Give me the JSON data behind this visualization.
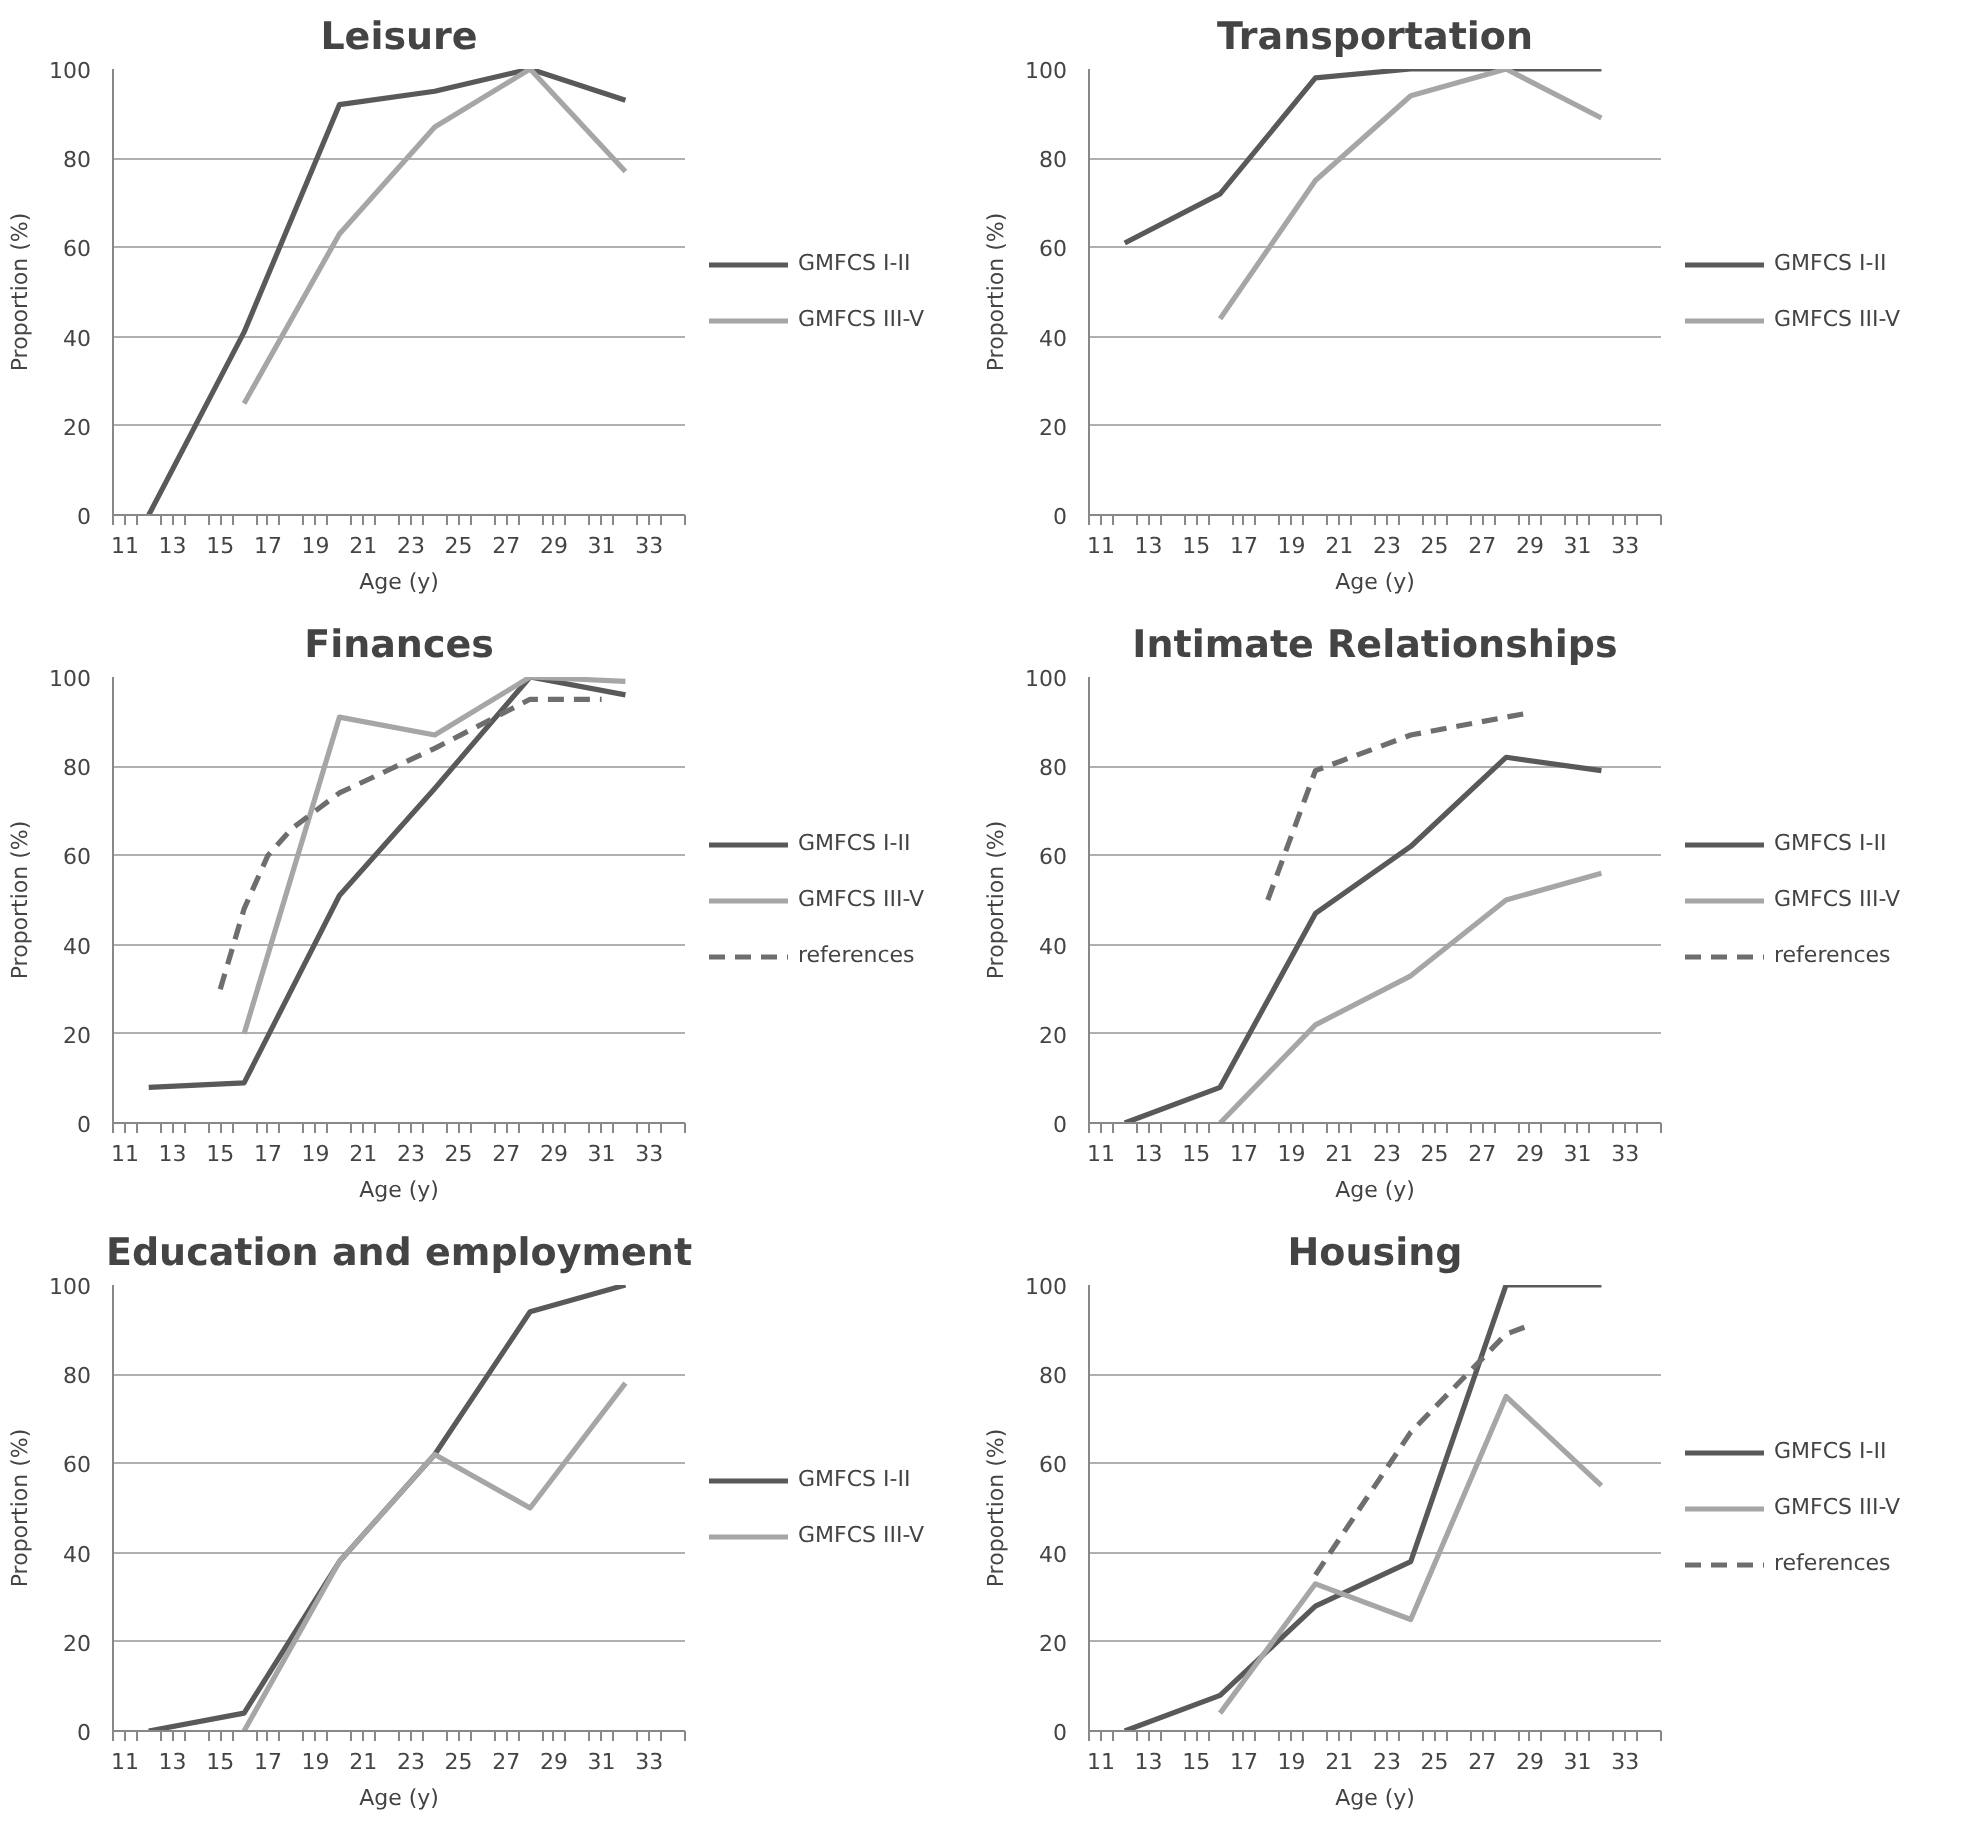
{
  "chart_data": [
    {
      "type": "line",
      "title": "Leisure",
      "xlabel": "Age (y)",
      "ylabel": "Proportion (%)",
      "xlim": [
        10.5,
        34.5
      ],
      "xticks": [
        {
          "value": 10.5,
          "label": null
        },
        11,
        {
          "value": 11.5,
          "label": null
        },
        {
          "value": 12.5,
          "label": null
        },
        13,
        {
          "value": 13.5,
          "label": null
        },
        {
          "value": 14.5,
          "label": null
        },
        15,
        {
          "value": 15.5,
          "label": null
        },
        {
          "value": 16.5,
          "label": null
        },
        17,
        {
          "value": 17.5,
          "label": null
        },
        {
          "value": 18.5,
          "label": null
        },
        19,
        {
          "value": 19.5,
          "label": null
        },
        {
          "value": 20.5,
          "label": null
        },
        21,
        {
          "value": 21.5,
          "label": null
        },
        {
          "value": 22.5,
          "label": null
        },
        23,
        {
          "value": 23.5,
          "label": null
        },
        {
          "value": 24.5,
          "label": null
        },
        25,
        {
          "value": 25.5,
          "label": null
        },
        {
          "value": 26.5,
          "label": null
        },
        27,
        {
          "value": 27.5,
          "label": null
        },
        {
          "value": 28.5,
          "label": null
        },
        29,
        {
          "value": 29.5,
          "label": null
        },
        {
          "value": 30.5,
          "label": null
        },
        31,
        {
          "value": 31.5,
          "label": null
        },
        {
          "value": 32.5,
          "label": null
        },
        33,
        {
          "value": 33.5,
          "label": null
        },
        {
          "value": 34.5,
          "label": null
        }
      ],
      "ylim": [
        0,
        100
      ],
      "yticks": [
        0,
        20,
        40,
        60,
        80,
        100
      ],
      "grid": "y",
      "legend": "right",
      "marker": "none",
      "series": [
        {
          "name": "GMFCS I-II",
          "color": "#595959",
          "x": [
            12,
            16,
            20,
            24,
            28,
            32
          ],
          "values": [
            0,
            41,
            92,
            95,
            100,
            93
          ]
        },
        {
          "name": "GMFCS III-V",
          "color": "#a6a6a6",
          "x": [
            16,
            20,
            24,
            28,
            32
          ],
          "values": [
            25,
            63,
            87,
            100,
            77
          ]
        }
      ]
    },
    {
      "type": "line",
      "title": "Transportation",
      "xlabel": "Age (y)",
      "ylabel": "Proportion (%)",
      "xlim": [
        10.5,
        34.5
      ],
      "xticks": [
        {
          "value": 10.5,
          "label": null
        },
        11,
        {
          "value": 11.5,
          "label": null
        },
        {
          "value": 12.5,
          "label": null
        },
        13,
        {
          "value": 13.5,
          "label": null
        },
        {
          "value": 14.5,
          "label": null
        },
        15,
        {
          "value": 15.5,
          "label": null
        },
        {
          "value": 16.5,
          "label": null
        },
        17,
        {
          "value": 17.5,
          "label": null
        },
        {
          "value": 18.5,
          "label": null
        },
        19,
        {
          "value": 19.5,
          "label": null
        },
        {
          "value": 20.5,
          "label": null
        },
        21,
        {
          "value": 21.5,
          "label": null
        },
        {
          "value": 22.5,
          "label": null
        },
        23,
        {
          "value": 23.5,
          "label": null
        },
        {
          "value": 24.5,
          "label": null
        },
        25,
        {
          "value": 25.5,
          "label": null
        },
        {
          "value": 26.5,
          "label": null
        },
        27,
        {
          "value": 27.5,
          "label": null
        },
        {
          "value": 28.5,
          "label": null
        },
        29,
        {
          "value": 29.5,
          "label": null
        },
        {
          "value": 30.5,
          "label": null
        },
        31,
        {
          "value": 31.5,
          "label": null
        },
        {
          "value": 32.5,
          "label": null
        },
        33,
        {
          "value": 33.5,
          "label": null
        },
        {
          "value": 34.5,
          "label": null
        }
      ],
      "ylim": [
        0,
        100
      ],
      "yticks": [
        0,
        20,
        40,
        60,
        80,
        100
      ],
      "grid": "y",
      "legend": "right",
      "marker": "none",
      "series": [
        {
          "name": "GMFCS I-II",
          "color": "#595959",
          "x": [
            12,
            16,
            20,
            24,
            28,
            32
          ],
          "values": [
            61,
            72,
            98,
            100,
            100,
            100
          ]
        },
        {
          "name": "GMFCS III-V",
          "color": "#a6a6a6",
          "x": [
            16,
            20,
            24,
            28,
            32
          ],
          "values": [
            44,
            75,
            94,
            100,
            89
          ]
        }
      ]
    },
    {
      "type": "line",
      "title": "Finances",
      "xlabel": "Age (y)",
      "ylabel": "Proportion (%)",
      "xlim": [
        10.5,
        34.5
      ],
      "xticks": [
        {
          "value": 10.5,
          "label": null
        },
        11,
        {
          "value": 11.5,
          "label": null
        },
        {
          "value": 12.5,
          "label": null
        },
        13,
        {
          "value": 13.5,
          "label": null
        },
        {
          "value": 14.5,
          "label": null
        },
        15,
        {
          "value": 15.5,
          "label": null
        },
        {
          "value": 16.5,
          "label": null
        },
        17,
        {
          "value": 17.5,
          "label": null
        },
        {
          "value": 18.5,
          "label": null
        },
        19,
        {
          "value": 19.5,
          "label": null
        },
        {
          "value": 20.5,
          "label": null
        },
        21,
        {
          "value": 21.5,
          "label": null
        },
        {
          "value": 22.5,
          "label": null
        },
        23,
        {
          "value": 23.5,
          "label": null
        },
        {
          "value": 24.5,
          "label": null
        },
        25,
        {
          "value": 25.5,
          "label": null
        },
        {
          "value": 26.5,
          "label": null
        },
        27,
        {
          "value": 27.5,
          "label": null
        },
        {
          "value": 28.5,
          "label": null
        },
        29,
        {
          "value": 29.5,
          "label": null
        },
        {
          "value": 30.5,
          "label": null
        },
        31,
        {
          "value": 31.5,
          "label": null
        },
        {
          "value": 32.5,
          "label": null
        },
        33,
        {
          "value": 33.5,
          "label": null
        },
        {
          "value": 34.5,
          "label": null
        }
      ],
      "ylim": [
        0,
        100
      ],
      "yticks": [
        0,
        20,
        40,
        60,
        80,
        100
      ],
      "grid": "y",
      "legend": "right",
      "marker": "none",
      "series": [
        {
          "name": "GMFCS I-II",
          "color": "#595959",
          "x": [
            12,
            16,
            20,
            24,
            28,
            32
          ],
          "values": [
            8,
            9,
            51,
            75,
            100,
            96
          ]
        },
        {
          "name": "GMFCS III-V",
          "color": "#a6a6a6",
          "x": [
            16,
            20,
            24,
            28,
            32
          ],
          "values": [
            20,
            91,
            87,
            100,
            99
          ]
        },
        {
          "name": "references",
          "color": "#6e6e6e",
          "line_style": "dashed",
          "x": [
            15,
            16,
            17,
            18,
            20,
            24,
            28,
            31
          ],
          "values": [
            30,
            48,
            60,
            66,
            74,
            84,
            95,
            95
          ]
        }
      ]
    },
    {
      "type": "line",
      "title": "Intimate Relationships",
      "xlabel": "Age (y)",
      "ylabel": "Proportion (%)",
      "xlim": [
        10.5,
        34.5
      ],
      "xticks": [
        {
          "value": 10.5,
          "label": null
        },
        11,
        {
          "value": 11.5,
          "label": null
        },
        {
          "value": 12.5,
          "label": null
        },
        13,
        {
          "value": 13.5,
          "label": null
        },
        {
          "value": 14.5,
          "label": null
        },
        15,
        {
          "value": 15.5,
          "label": null
        },
        {
          "value": 16.5,
          "label": null
        },
        17,
        {
          "value": 17.5,
          "label": null
        },
        {
          "value": 18.5,
          "label": null
        },
        19,
        {
          "value": 19.5,
          "label": null
        },
        {
          "value": 20.5,
          "label": null
        },
        21,
        {
          "value": 21.5,
          "label": null
        },
        {
          "value": 22.5,
          "label": null
        },
        23,
        {
          "value": 23.5,
          "label": null
        },
        {
          "value": 24.5,
          "label": null
        },
        25,
        {
          "value": 25.5,
          "label": null
        },
        {
          "value": 26.5,
          "label": null
        },
        27,
        {
          "value": 27.5,
          "label": null
        },
        {
          "value": 28.5,
          "label": null
        },
        29,
        {
          "value": 29.5,
          "label": null
        },
        {
          "value": 30.5,
          "label": null
        },
        31,
        {
          "value": 31.5,
          "label": null
        },
        {
          "value": 32.5,
          "label": null
        },
        33,
        {
          "value": 33.5,
          "label": null
        },
        {
          "value": 34.5,
          "label": null
        }
      ],
      "ylim": [
        0,
        100
      ],
      "yticks": [
        0,
        20,
        40,
        60,
        80,
        100
      ],
      "grid": "y",
      "legend": "right",
      "marker": "none",
      "series": [
        {
          "name": "GMFCS I-II",
          "color": "#595959",
          "x": [
            12,
            16,
            20,
            24,
            28,
            32
          ],
          "values": [
            0,
            8,
            47,
            62,
            82,
            79
          ]
        },
        {
          "name": "GMFCS III-V",
          "color": "#a6a6a6",
          "x": [
            16,
            20,
            24,
            28,
            32
          ],
          "values": [
            0,
            22,
            33,
            50,
            56
          ]
        },
        {
          "name": "references",
          "color": "#6e6e6e",
          "line_style": "dashed",
          "x": [
            18,
            20,
            24,
            26,
            29
          ],
          "values": [
            50,
            79,
            87,
            89,
            92
          ]
        }
      ]
    },
    {
      "type": "line",
      "title": "Education and employment",
      "xlabel": "Age (y)",
      "ylabel": "Proportion (%)",
      "xlim": [
        10.5,
        34.5
      ],
      "xticks": [
        {
          "value": 10.5,
          "label": null
        },
        11,
        {
          "value": 11.5,
          "label": null
        },
        {
          "value": 12.5,
          "label": null
        },
        13,
        {
          "value": 13.5,
          "label": null
        },
        {
          "value": 14.5,
          "label": null
        },
        15,
        {
          "value": 15.5,
          "label": null
        },
        {
          "value": 16.5,
          "label": null
        },
        17,
        {
          "value": 17.5,
          "label": null
        },
        {
          "value": 18.5,
          "label": null
        },
        19,
        {
          "value": 19.5,
          "label": null
        },
        {
          "value": 20.5,
          "label": null
        },
        21,
        {
          "value": 21.5,
          "label": null
        },
        {
          "value": 22.5,
          "label": null
        },
        23,
        {
          "value": 23.5,
          "label": null
        },
        {
          "value": 24.5,
          "label": null
        },
        25,
        {
          "value": 25.5,
          "label": null
        },
        {
          "value": 26.5,
          "label": null
        },
        27,
        {
          "value": 27.5,
          "label": null
        },
        {
          "value": 28.5,
          "label": null
        },
        29,
        {
          "value": 29.5,
          "label": null
        },
        {
          "value": 30.5,
          "label": null
        },
        31,
        {
          "value": 31.5,
          "label": null
        },
        {
          "value": 32.5,
          "label": null
        },
        33,
        {
          "value": 33.5,
          "label": null
        },
        {
          "value": 34.5,
          "label": null
        }
      ],
      "ylim": [
        0,
        100
      ],
      "yticks": [
        0,
        20,
        40,
        60,
        80,
        100
      ],
      "grid": "y",
      "legend": "right",
      "marker": "none",
      "series": [
        {
          "name": "GMFCS I-II",
          "color": "#595959",
          "x": [
            12,
            16,
            20,
            24,
            28,
            32
          ],
          "values": [
            0,
            4,
            38,
            62,
            94,
            100
          ]
        },
        {
          "name": "GMFCS III-V",
          "color": "#a6a6a6",
          "x": [
            16,
            20,
            24,
            28,
            32
          ],
          "values": [
            0,
            38,
            62,
            50,
            78
          ]
        }
      ]
    },
    {
      "type": "line",
      "title": "Housing",
      "xlabel": "Age (y)",
      "ylabel": "Proportion (%)",
      "xlim": [
        10.5,
        34.5
      ],
      "xticks": [
        {
          "value": 10.5,
          "label": null
        },
        11,
        {
          "value": 11.5,
          "label": null
        },
        {
          "value": 12.5,
          "label": null
        },
        13,
        {
          "value": 13.5,
          "label": null
        },
        {
          "value": 14.5,
          "label": null
        },
        15,
        {
          "value": 15.5,
          "label": null
        },
        {
          "value": 16.5,
          "label": null
        },
        17,
        {
          "value": 17.5,
          "label": null
        },
        {
          "value": 18.5,
          "label": null
        },
        19,
        {
          "value": 19.5,
          "label": null
        },
        {
          "value": 20.5,
          "label": null
        },
        21,
        {
          "value": 21.5,
          "label": null
        },
        {
          "value": 22.5,
          "label": null
        },
        23,
        {
          "value": 23.5,
          "label": null
        },
        {
          "value": 24.5,
          "label": null
        },
        25,
        {
          "value": 25.5,
          "label": null
        },
        {
          "value": 26.5,
          "label": null
        },
        27,
        {
          "value": 27.5,
          "label": null
        },
        {
          "value": 28.5,
          "label": null
        },
        29,
        {
          "value": 29.5,
          "label": null
        },
        {
          "value": 30.5,
          "label": null
        },
        31,
        {
          "value": 31.5,
          "label": null
        },
        {
          "value": 32.5,
          "label": null
        },
        33,
        {
          "value": 33.5,
          "label": null
        },
        {
          "value": 34.5,
          "label": null
        }
      ],
      "ylim": [
        0,
        100
      ],
      "yticks": [
        0,
        20,
        40,
        60,
        80,
        100
      ],
      "grid": "y",
      "legend": "right",
      "marker": "none",
      "series": [
        {
          "name": "GMFCS I-II",
          "color": "#595959",
          "x": [
            12,
            16,
            20,
            24,
            28,
            32
          ],
          "values": [
            0,
            8,
            28,
            38,
            100,
            100
          ]
        },
        {
          "name": "GMFCS III-V",
          "color": "#a6a6a6",
          "x": [
            16,
            20,
            24,
            28,
            32
          ],
          "values": [
            4,
            33,
            25,
            75,
            55
          ]
        },
        {
          "name": "references",
          "color": "#6e6e6e",
          "line_style": "dashed",
          "x": [
            20,
            24,
            28,
            29
          ],
          "values": [
            35,
            67,
            89,
            91
          ]
        }
      ]
    }
  ]
}
